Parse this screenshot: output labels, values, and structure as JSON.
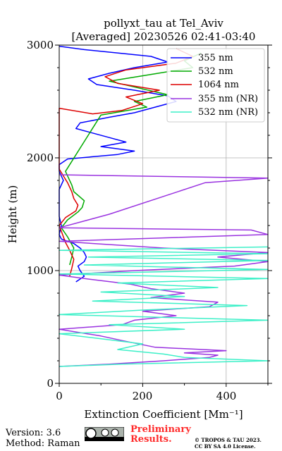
{
  "chart_data": {
    "type": "line",
    "title": "pollyxt_tau at Tel_Aviv",
    "subtitle": "[Averaged] 20230526 02:41-03:40",
    "xlabel": "Extinction Coefficient [Mm⁻¹]",
    "ylabel": "Height (m)",
    "xlim": [
      0,
      500
    ],
    "ylim": [
      0,
      3000
    ],
    "x_ticks": [
      "0",
      "200",
      "400"
    ],
    "y_ticks": [
      "0",
      "1000",
      "2000",
      "3000"
    ],
    "grid": true,
    "legend_position": "upper-right",
    "series": [
      {
        "name": "355 nm",
        "color": "#0000ff",
        "points": [
          [
            40,
            900
          ],
          [
            60,
            950
          ],
          [
            50,
            1000
          ],
          [
            45,
            1040
          ],
          [
            60,
            1080
          ],
          [
            65,
            1120
          ],
          [
            60,
            1160
          ],
          [
            50,
            1200
          ],
          [
            35,
            1240
          ],
          [
            5,
            1280
          ],
          [
            0,
            1320
          ],
          [
            5,
            1400
          ],
          [
            0,
            1480
          ],
          [
            0,
            1560
          ],
          [
            0,
            1640
          ],
          [
            0,
            1720
          ],
          [
            10,
            1800
          ],
          [
            0,
            1880
          ],
          [
            0,
            1940
          ],
          [
            20,
            1990
          ],
          [
            140,
            2030
          ],
          [
            180,
            2060
          ],
          [
            100,
            2100
          ],
          [
            160,
            2140
          ],
          [
            120,
            2180
          ],
          [
            80,
            2220
          ],
          [
            40,
            2260
          ],
          [
            50,
            2310
          ],
          [
            120,
            2360
          ],
          [
            180,
            2400
          ],
          [
            230,
            2450
          ],
          [
            280,
            2500
          ],
          [
            260,
            2550
          ],
          [
            180,
            2600
          ],
          [
            90,
            2650
          ],
          [
            70,
            2700
          ],
          [
            120,
            2750
          ],
          [
            180,
            2800
          ],
          [
            260,
            2850
          ],
          [
            220,
            2900
          ],
          [
            60,
            2960
          ],
          [
            0,
            2990
          ]
        ]
      },
      {
        "name": "532 nm",
        "color": "#00aa00",
        "points": [
          [
            25,
            1050
          ],
          [
            30,
            1120
          ],
          [
            35,
            1200
          ],
          [
            20,
            1300
          ],
          [
            5,
            1380
          ],
          [
            20,
            1450
          ],
          [
            45,
            1520
          ],
          [
            55,
            1560
          ],
          [
            60,
            1620
          ],
          [
            35,
            1700
          ],
          [
            30,
            1760
          ],
          [
            20,
            1840
          ],
          [
            15,
            1880
          ],
          [
            100,
            2380
          ],
          [
            210,
            2450
          ],
          [
            180,
            2500
          ],
          [
            260,
            2560
          ],
          [
            190,
            2620
          ],
          [
            120,
            2680
          ],
          [
            220,
            2740
          ],
          [
            320,
            2800
          ],
          [
            300,
            2860
          ],
          [
            340,
            2930
          ]
        ]
      },
      {
        "name": "1064 nm",
        "color": "#dd0000",
        "points": [
          [
            25,
            950
          ],
          [
            30,
            1020
          ],
          [
            35,
            1100
          ],
          [
            25,
            1180
          ],
          [
            15,
            1250
          ],
          [
            10,
            1300
          ],
          [
            0,
            1400
          ],
          [
            15,
            1470
          ],
          [
            40,
            1530
          ],
          [
            45,
            1580
          ],
          [
            35,
            1640
          ],
          [
            30,
            1700
          ],
          [
            20,
            1780
          ],
          [
            10,
            1840
          ],
          [
            0,
            1900
          ],
          [
            0,
            2440
          ],
          [
            80,
            2390
          ],
          [
            150,
            2420
          ],
          [
            200,
            2480
          ],
          [
            160,
            2540
          ],
          [
            240,
            2600
          ],
          [
            140,
            2660
          ],
          [
            110,
            2720
          ],
          [
            160,
            2780
          ],
          [
            280,
            2840
          ],
          [
            320,
            2900
          ],
          [
            280,
            2970
          ]
        ]
      },
      {
        "name": "355 nm (NR)",
        "color": "#9a33e0",
        "points": [
          [
            0,
            150
          ],
          [
            120,
            170
          ],
          [
            250,
            200
          ],
          [
            360,
            230
          ],
          [
            380,
            250
          ],
          [
            300,
            270
          ],
          [
            400,
            290
          ],
          [
            230,
            320
          ],
          [
            150,
            380
          ],
          [
            100,
            420
          ],
          [
            0,
            480
          ],
          [
            150,
            520
          ],
          [
            180,
            560
          ],
          [
            280,
            600
          ],
          [
            200,
            640
          ],
          [
            360,
            680
          ],
          [
            380,
            720
          ],
          [
            220,
            760
          ],
          [
            300,
            800
          ],
          [
            220,
            840
          ],
          [
            170,
            880
          ],
          [
            80,
            920
          ],
          [
            0,
            960
          ],
          [
            180,
            1000
          ],
          [
            420,
            1040
          ],
          [
            500,
            1080
          ],
          [
            380,
            1120
          ],
          [
            500,
            1160
          ],
          [
            250,
            1200
          ],
          [
            0,
            1260
          ],
          [
            500,
            1320
          ],
          [
            460,
            1360
          ],
          [
            0,
            1380
          ],
          [
            120,
            1500
          ],
          [
            350,
            1780
          ],
          [
            500,
            1820
          ],
          [
            0,
            1850
          ]
        ]
      },
      {
        "name": "532 nm (NR)",
        "color": "#3df0c8",
        "points": [
          [
            0,
            150
          ],
          [
            150,
            170
          ],
          [
            500,
            200
          ],
          [
            300,
            230
          ],
          [
            250,
            260
          ],
          [
            140,
            300
          ],
          [
            200,
            350
          ],
          [
            90,
            400
          ],
          [
            0,
            440
          ],
          [
            300,
            480
          ],
          [
            120,
            520
          ],
          [
            500,
            560
          ],
          [
            0,
            610
          ],
          [
            200,
            650
          ],
          [
            450,
            690
          ],
          [
            80,
            730
          ],
          [
            300,
            770
          ],
          [
            100,
            810
          ],
          [
            380,
            850
          ],
          [
            140,
            890
          ],
          [
            500,
            930
          ],
          [
            0,
            970
          ],
          [
            500,
            1010
          ],
          [
            60,
            1050
          ],
          [
            500,
            1090
          ],
          [
            70,
            1120
          ],
          [
            500,
            1150
          ],
          [
            0,
            1180
          ],
          [
            500,
            1210
          ]
        ]
      }
    ]
  },
  "footer": {
    "version": "Version: 3.6",
    "method": "Method: Raman",
    "preliminary_line1": "Preliminary",
    "preliminary_line2": "Results.",
    "copyright_line1": "© TROPOS & TAU 2023.",
    "copyright_line2": "CC BY SA 4.0 License."
  }
}
